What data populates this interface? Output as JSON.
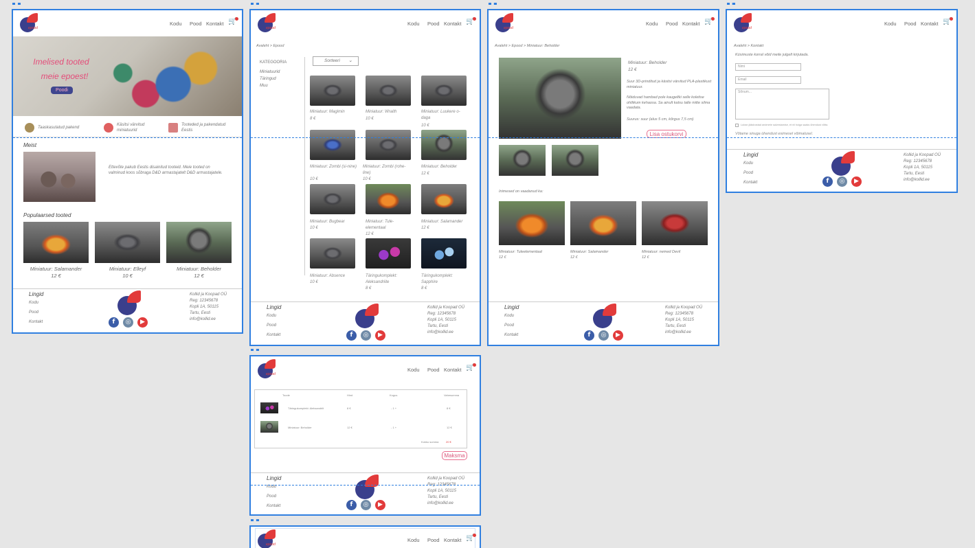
{
  "nav": {
    "home": "Kodu",
    "shop": "Pood",
    "contact": "Kontakt"
  },
  "footer": {
    "title": "Lingid",
    "links": [
      "Kodu",
      "Pood",
      "Kontakt"
    ],
    "address": "Kollid ja Koopad OÜ\nReg: 12345678\nKopli 1A, 50115\nTartu, Eesti\ninfo@kollid.ee",
    "social": {
      "fb": "f",
      "ig": "◎",
      "yt": "▶"
    }
  },
  "home": {
    "hero_line1": "Imelised tooted",
    "hero_line2": "meie epoest!",
    "hero_button": "Poodi",
    "features": [
      "Taaskasutatud pakend",
      "Käsitsi värvitud miniatuurid",
      "Tooteded ja pakendatud Eestis"
    ],
    "about_title": "Meist",
    "about_text": "Ettevõte pakub Eestis disainitud tooteid. Meie tooted on valminud koos sõbraga D&D armastajatelt D&D armastajatele.",
    "popular_title": "Populaarsed tooted",
    "popular": [
      {
        "name": "Miniatuur: Salamander",
        "price": "12 €"
      },
      {
        "name": "Miniatuur: Elleyf",
        "price": "10 €"
      },
      {
        "name": "Miniatuur: Beholder",
        "price": "12 €"
      }
    ]
  },
  "shop": {
    "breadcrumb": "Avaleht > Epood",
    "categories_title": "KATEGOORIA",
    "categories": [
      "Miniatuurid",
      "Täringud",
      "Muu"
    ],
    "sort_label": "Sorteeri",
    "sort_icon": "chevron-down-icon",
    "products": [
      {
        "name": "Miniatuur: Magimin",
        "price": "8 €"
      },
      {
        "name": "Miniatuur: Wraith",
        "price": "10 €"
      },
      {
        "name": "Miniatuur: Luukere o-daga",
        "price": "10 €"
      },
      {
        "name": "Miniatuur: Zombi (si-nine)",
        "price": "10 €"
      },
      {
        "name": "Miniatuur: Zombi (rohe-line)",
        "price": "10 €"
      },
      {
        "name": "Miniatuur: Beholder",
        "price": "12 €"
      },
      {
        "name": "Miniatuur: Bugbear",
        "price": "10 €"
      },
      {
        "name": "Miniatuur: Tule-elementaal",
        "price": "12 €"
      },
      {
        "name": "Miniatuur: Salamander",
        "price": "12 €"
      },
      {
        "name": "Miniatuur: Absence",
        "price": "10 €"
      },
      {
        "name": "Täringukomplekt: Aleksandriite",
        "price": "8 €"
      },
      {
        "name": "Täringukomplekt: Sapphire",
        "price": "8 €"
      }
    ]
  },
  "product": {
    "breadcrumb": "Avaleht > Epood > Miniatuur: Beholder",
    "title": "Miniatuur: Beholder",
    "price": "12 €",
    "desc1": "Suur 3D-prinditud ja käsitsi värvitud PLA-plastikust miniatuur.",
    "desc2": "Nõiduvad hambad pole kaugeltki selle koletise ohtlikum kehaosa. Sa ainult katsu talle mitte silma vaadata.",
    "desc3": "Suurus: suur (alus 5 cm, kõrgus 7,5 cm)",
    "add_to_cart": "Lisa ostukorvi",
    "related_title": "Inimesed on vaadanud ka:",
    "related": [
      {
        "name": "Miniatuur: Tuleelementaal",
        "price": "12 €"
      },
      {
        "name": "Miniatuur: Salamander",
        "price": "12 €"
      },
      {
        "name": "Miniatuur: nemed Devil",
        "price": "12 €"
      }
    ]
  },
  "contact": {
    "breadcrumb": "Avaleht > Kontakt",
    "intro": "Küsimuste korral võid meile julgelt kirjutada.",
    "name_placeholder": "Nimi",
    "email_placeholder": "Email",
    "message_placeholder": "Sõnum...",
    "consent": "Luban jäädvustad andmete salvestamise, et nii hoiga saaks ühendust võtta.",
    "note": "Võtame sinuga ühendust esimesel võimalusel."
  },
  "cart": {
    "headers": [
      "Toode",
      "Hind",
      "Kogus",
      "Vahesumma"
    ],
    "rows": [
      {
        "name": "Täringukomplekt: Aleksandriit",
        "price": "8 €",
        "qty": "- 1 +",
        "subtotal": "8 €"
      },
      {
        "name": "Miniatuur: Beholder",
        "price": "12 €",
        "qty": "- 1 +",
        "subtotal": "12 €"
      }
    ],
    "total_label": "Kokku summa",
    "total": "20 €",
    "pay": "Maksma"
  }
}
